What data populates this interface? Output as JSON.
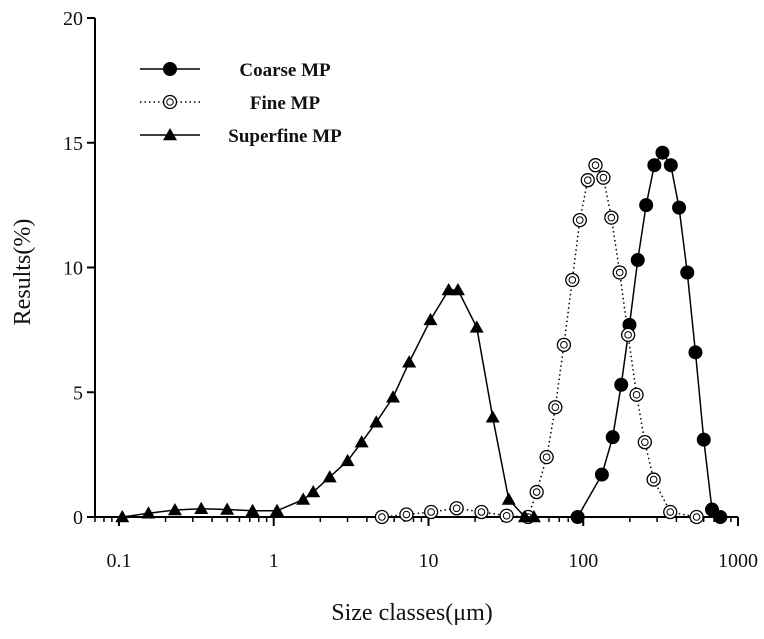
{
  "chart_data": {
    "type": "line",
    "title": "",
    "xlabel": "Size classes(μm)",
    "ylabel": "Results(%)",
    "xscale": "log",
    "xlim": [
      0.07,
      1000
    ],
    "ylim": [
      0,
      20
    ],
    "xticks": [
      0.1,
      1,
      10,
      100,
      1000
    ],
    "xtick_labels": [
      "0.1",
      "1",
      "10",
      "100",
      "1000"
    ],
    "yticks": [
      0,
      5,
      10,
      15,
      20
    ],
    "ytick_labels": [
      "0",
      "5",
      "10",
      "15",
      "20"
    ],
    "grid": false,
    "legend": "top-left",
    "series": [
      {
        "name": "Coarse MP",
        "marker": "filled-circle",
        "line": "solid",
        "color": "#000000",
        "x": [
          92,
          132,
          155,
          176,
          199,
          225,
          255,
          288,
          325,
          368,
          416,
          470,
          531,
          601,
          679,
          768
        ],
        "y": [
          0.0,
          1.7,
          3.2,
          5.3,
          7.7,
          10.3,
          12.5,
          14.1,
          14.6,
          14.1,
          12.4,
          9.8,
          6.6,
          3.1,
          0.3,
          0.0
        ]
      },
      {
        "name": "Fine MP",
        "marker": "open-circle",
        "line": "dotted",
        "color": "#000000",
        "x": [
          5,
          7.2,
          10.4,
          15.2,
          22,
          32,
          44,
          50,
          58,
          66,
          75,
          85,
          95,
          107,
          120,
          135,
          152,
          172,
          195,
          221,
          250,
          285,
          365,
          540
        ],
        "y": [
          0.0,
          0.1,
          0.2,
          0.35,
          0.2,
          0.05,
          0.0,
          1.0,
          2.4,
          4.4,
          6.9,
          9.5,
          11.9,
          13.5,
          14.1,
          13.6,
          12.0,
          9.8,
          7.3,
          4.9,
          3.0,
          1.5,
          0.2,
          0.0
        ]
      },
      {
        "name": "Superfine MP",
        "marker": "filled-triangle",
        "line": "solid",
        "color": "#000000",
        "x": [
          0.105,
          0.155,
          0.23,
          0.34,
          0.5,
          0.73,
          1.05,
          1.55,
          1.8,
          2.3,
          3.0,
          3.7,
          4.6,
          5.9,
          7.5,
          10.3,
          13.5,
          15.5,
          20.5,
          26,
          33,
          42,
          48
        ],
        "y": [
          0.0,
          0.15,
          0.28,
          0.33,
          0.3,
          0.25,
          0.25,
          0.7,
          1.0,
          1.6,
          2.25,
          3.0,
          3.8,
          4.8,
          6.2,
          7.9,
          9.1,
          9.1,
          7.6,
          4.0,
          0.7,
          0.0,
          0.0
        ]
      }
    ]
  }
}
